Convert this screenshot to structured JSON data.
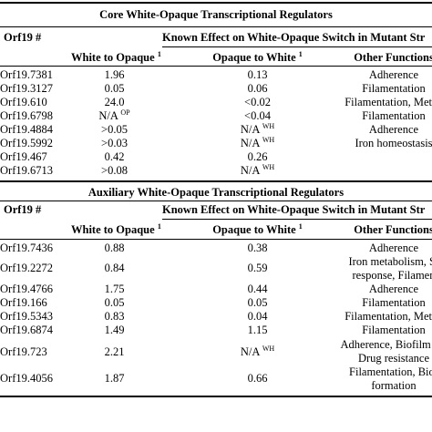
{
  "core": {
    "title": "Core White-Opaque Transcriptional Regulators",
    "col_orf": "Orf19 #",
    "known_effect": "Known Effect on White-Opaque Switch in Mutant Str",
    "col_wto": "White to Opaque",
    "col_otw": "Opaque to White",
    "col_other": "Other Functions",
    "sup": "1",
    "rows": [
      {
        "orf": "Orf19.7381",
        "wto": "1.96",
        "wto_sup": "",
        "otw": "0.13",
        "otw_sup": "",
        "other": "Adherence"
      },
      {
        "orf": "Orf19.3127",
        "wto": "0.05",
        "wto_sup": "",
        "otw": "0.06",
        "otw_sup": "",
        "other": "Filamentation"
      },
      {
        "orf": "Orf19.610",
        "wto": "24.0",
        "wto_sup": "",
        "otw": "<0.02",
        "otw_sup": "",
        "other": "Filamentation, Metab"
      },
      {
        "orf": "Orf19.6798",
        "wto": "N/A",
        "wto_sup": "OP",
        "otw": "<0.04",
        "otw_sup": "",
        "other": "Filamentation"
      },
      {
        "orf": "Orf19.4884",
        "wto": ">0.05",
        "wto_sup": "",
        "otw": "N/A",
        "otw_sup": "WH",
        "other": "Adherence"
      },
      {
        "orf": "Orf19.5992",
        "wto": ">0.03",
        "wto_sup": "",
        "otw": "N/A",
        "otw_sup": "WH",
        "other": "Iron homeostasis"
      },
      {
        "orf": "Orf19.467",
        "wto": "0.42",
        "wto_sup": "",
        "otw": "0.26",
        "otw_sup": "",
        "other": ""
      },
      {
        "orf": "Orf19.6713",
        "wto": ">0.08",
        "wto_sup": "",
        "otw": "N/A",
        "otw_sup": "WH",
        "other": ""
      }
    ]
  },
  "aux": {
    "title": "Auxiliary White-Opaque Transcriptional Regulators",
    "col_orf": "Orf19 #",
    "known_effect": "Known Effect on White-Opaque Switch in Mutant Str",
    "col_wto": "White to Opaque",
    "col_otw": "Opaque to White",
    "col_other": "Other Functions",
    "sup": "1",
    "rows": [
      {
        "orf": "Orf19.7436",
        "wto": "0.88",
        "otw": "0.38",
        "otw_sup": "",
        "other": [
          "Adherence"
        ]
      },
      {
        "orf": "Orf19.2272",
        "wto": "0.84",
        "otw": "0.59",
        "otw_sup": "",
        "other": [
          "Iron metabolism, St",
          "response, Filamen"
        ]
      },
      {
        "orf": "Orf19.4766",
        "wto": "1.75",
        "otw": "0.44",
        "otw_sup": "",
        "other": [
          "Adherence"
        ]
      },
      {
        "orf": "Orf19.166",
        "wto": "0.05",
        "otw": "0.05",
        "otw_sup": "",
        "other": [
          "Filamentation"
        ]
      },
      {
        "orf": "Orf19.5343",
        "wto": "0.83",
        "otw": "0.04",
        "otw_sup": "",
        "other": [
          "Filamentation, Metab"
        ]
      },
      {
        "orf": "Orf19.6874",
        "wto": "1.49",
        "otw": "1.15",
        "otw_sup": "",
        "other": [
          "Filamentation"
        ]
      },
      {
        "orf": "Orf19.723",
        "wto": "2.21",
        "otw": "N/A",
        "otw_sup": "WH",
        "other": [
          "Adherence, Biofilm for",
          "Drug resistance"
        ]
      },
      {
        "orf": "Orf19.4056",
        "wto": "1.87",
        "otw": "0.66",
        "otw_sup": "",
        "other": [
          "Filamentation, Biof",
          "formation"
        ]
      }
    ]
  }
}
